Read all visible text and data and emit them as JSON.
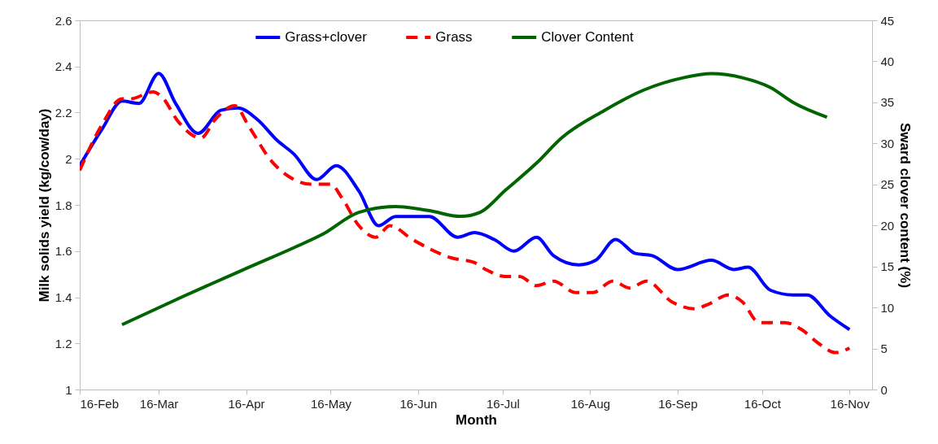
{
  "chart_data": {
    "type": "line",
    "xlabel": "Month",
    "ylabel": "Milk solids yield (kg/cow/day)",
    "y2label": "Sward clover content (%)",
    "legend": "top",
    "grid": false,
    "xlim": [
      "--02-16",
      "--11-24"
    ],
    "xticks": [
      {
        "value": "--02-16",
        "label": "16-Feb"
      },
      {
        "value": "--03-16",
        "label": "16-Mar"
      },
      {
        "value": "--04-16",
        "label": "16-Apr"
      },
      {
        "value": "--05-16",
        "label": "16-May"
      },
      {
        "value": "--06-16",
        "label": "16-Jun"
      },
      {
        "value": "--07-16",
        "label": "16-Jul"
      },
      {
        "value": "--08-16",
        "label": "16-Aug"
      },
      {
        "value": "--09-16",
        "label": "16-Sep"
      },
      {
        "value": "--10-16",
        "label": "16-Oct"
      },
      {
        "value": "--11-16",
        "label": "16-Nov"
      }
    ],
    "ylim": [
      1,
      2.6
    ],
    "yticks": [
      1,
      1.2,
      1.4,
      1.6,
      1.8,
      2,
      2.2,
      2.4,
      2.6
    ],
    "y2lim": [
      0,
      45
    ],
    "y2ticks": [
      0,
      5,
      10,
      15,
      20,
      25,
      30,
      35,
      40,
      45
    ],
    "series": [
      {
        "name": "Grass+clover",
        "color": "#0000ff",
        "line_style": "solid",
        "x": [
          "--02-16",
          "--02-24",
          "--03-03",
          "--03-09",
          "--03-16",
          "--03-22",
          "--03-30",
          "--04-07",
          "--04-13",
          "--04-20",
          "--04-27",
          "--05-03",
          "--05-11",
          "--05-18",
          "--05-26",
          "--06-02",
          "--06-08",
          "--06-20",
          "--06-30",
          "--07-06",
          "--07-13",
          "--07-20",
          "--07-28",
          "--08-03",
          "--08-12",
          "--08-18",
          "--08-25",
          "--09-01",
          "--09-07",
          "--09-16",
          "--09-28",
          "--10-06",
          "--10-11",
          "--10-19",
          "--10-27",
          "--11-01",
          "--11-09",
          "--11-16"
        ],
        "values": [
          1.97,
          2.13,
          2.25,
          2.24,
          2.37,
          2.24,
          2.11,
          2.21,
          2.22,
          2.17,
          2.08,
          2.02,
          1.91,
          1.97,
          1.86,
          1.71,
          1.75,
          1.75,
          1.66,
          1.68,
          1.65,
          1.6,
          1.66,
          1.58,
          1.54,
          1.56,
          1.65,
          1.59,
          1.58,
          1.52,
          1.56,
          1.52,
          1.53,
          1.43,
          1.41,
          1.41,
          1.32,
          1.26
        ]
      },
      {
        "name": "Grass",
        "color": "#ff0000",
        "line_style": "dashed",
        "x": [
          "--02-16",
          "--02-24",
          "--03-03",
          "--03-06",
          "--03-14",
          "--03-17",
          "--03-23",
          "--03-31",
          "--04-05",
          "--04-12",
          "--04-17",
          "--04-25",
          "--05-03",
          "--05-09",
          "--05-16",
          "--05-20",
          "--05-26",
          "--06-01",
          "--06-06",
          "--06-14",
          "--06-28",
          "--07-06",
          "--07-10",
          "--07-17",
          "--07-22",
          "--07-28",
          "--08-03",
          "--08-11",
          "--08-17",
          "--08-24",
          "--08-30",
          "--09-05",
          "--09-14",
          "--09-22",
          "--09-27",
          "--10-04",
          "--10-09",
          "--10-15",
          "--10-24",
          "--10-30",
          "--11-05",
          "--11-11",
          "--11-16"
        ],
        "values": [
          1.95,
          2.15,
          2.26,
          2.26,
          2.29,
          2.27,
          2.16,
          2.09,
          2.17,
          2.23,
          2.14,
          1.99,
          1.91,
          1.89,
          1.89,
          1.83,
          1.71,
          1.66,
          1.71,
          1.65,
          1.57,
          1.55,
          1.52,
          1.49,
          1.49,
          1.45,
          1.47,
          1.42,
          1.42,
          1.47,
          1.44,
          1.47,
          1.38,
          1.35,
          1.37,
          1.41,
          1.38,
          1.29,
          1.29,
          1.26,
          1.2,
          1.16,
          1.18
        ]
      },
      {
        "name": "Clover Content",
        "color": "#006400",
        "line_style": "solid",
        "axis": "y2",
        "x": [
          "--03-03",
          "--03-25",
          "--04-17",
          "--05-03",
          "--05-13",
          "--05-26",
          "--06-08",
          "--06-20",
          "--07-01",
          "--07-08",
          "--07-17",
          "--07-28",
          "--08-06",
          "--08-21",
          "--09-04",
          "--09-18",
          "--09-28",
          "--10-09",
          "--10-19",
          "--10-27",
          "--11-08"
        ],
        "values": [
          7.9,
          11.4,
          14.9,
          17.3,
          18.9,
          21.6,
          22.3,
          21.8,
          21.1,
          21.6,
          24.3,
          27.6,
          30.7,
          34,
          36.5,
          38,
          38.5,
          38,
          36.8,
          35,
          33.2
        ]
      }
    ]
  }
}
